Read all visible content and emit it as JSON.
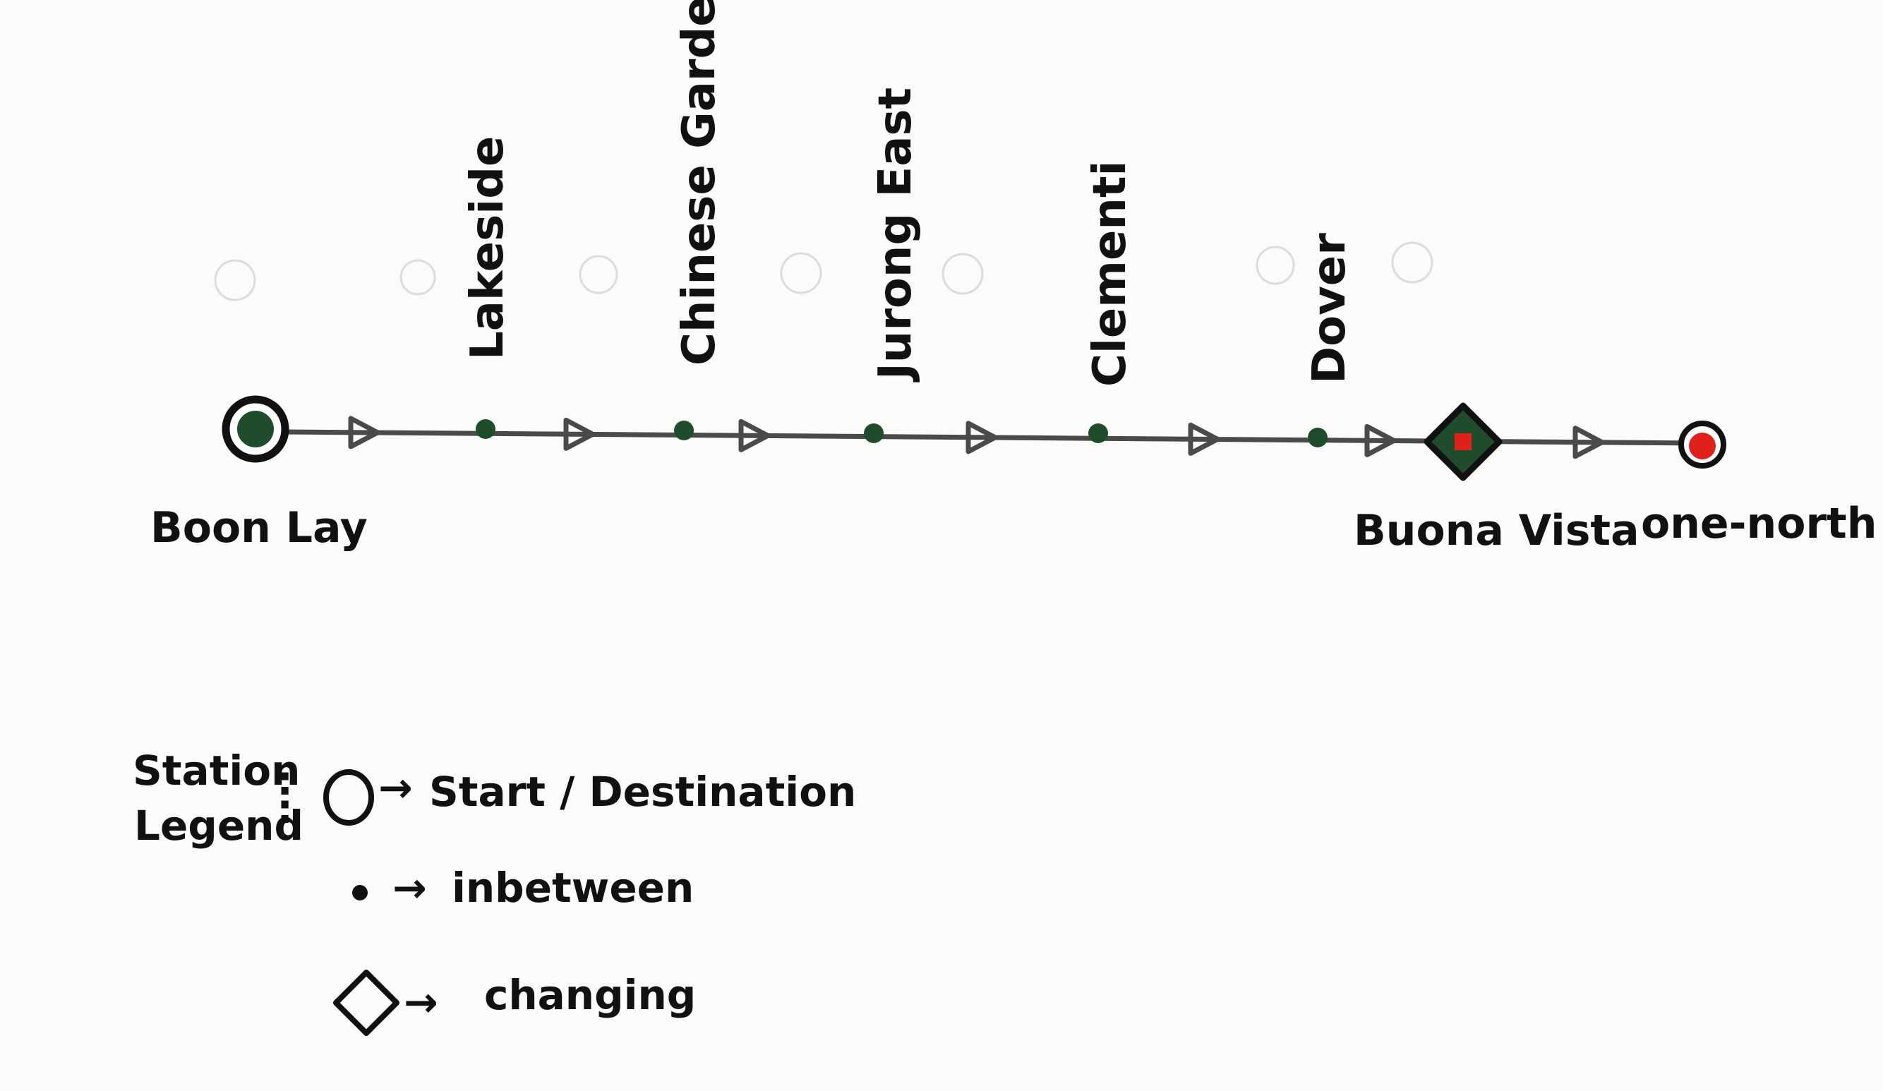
{
  "colors": {
    "ink": "#111111",
    "line": "#4a4a4a",
    "station_green": "#1f4d2b",
    "destination_red": "#e0201b",
    "paper": "#fbfbfa"
  },
  "route": {
    "start": {
      "label": "Boon Lay",
      "type": "start"
    },
    "stations": [
      {
        "label": "Lakeside",
        "type": "inbetween"
      },
      {
        "label": "Chinese Garden",
        "type": "inbetween"
      },
      {
        "label": "Jurong East",
        "type": "inbetween"
      },
      {
        "label": "Clementi",
        "type": "inbetween"
      },
      {
        "label": "Dover",
        "type": "inbetween"
      }
    ],
    "interchange": {
      "label": "Buona Vista",
      "type": "changing"
    },
    "destination": {
      "label": "one-north",
      "type": "destination"
    },
    "direction_icon": "arrow-right-icon"
  },
  "legend": {
    "title_line1": "Station",
    "title_line2": "Legend",
    "colon": ":",
    "items": [
      {
        "icon": "circle-icon",
        "arrow": "→",
        "label": "Start / Destination"
      },
      {
        "icon": "dot-icon",
        "arrow": "→",
        "label": "inbetween"
      },
      {
        "icon": "diamond-icon",
        "arrow": "→",
        "label": "changing"
      }
    ]
  }
}
